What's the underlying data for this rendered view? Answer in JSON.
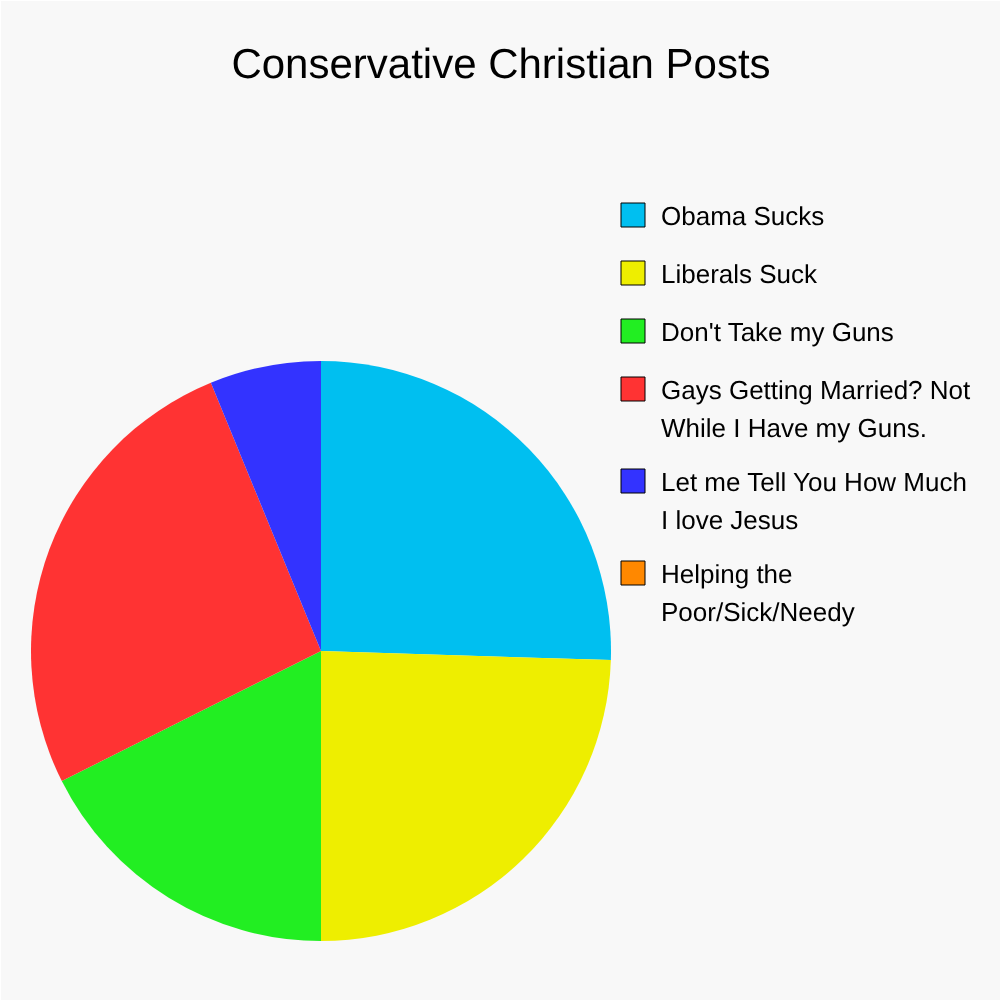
{
  "chart_data": {
    "type": "pie",
    "title": "Conservative Christian Posts",
    "categories": [
      "Obama Sucks",
      "Liberals Suck",
      "Don't Take my Guns",
      "Gays Getting Married? Not While I Have my Guns.",
      "Let me Tell You How Much I love Jesus",
      "Helping the Poor/Sick/Needy"
    ],
    "values": [
      25.5,
      24.5,
      17.6,
      26.2,
      6.2,
      0
    ],
    "colors": [
      "#00bff0",
      "#eeee00",
      "#22ee22",
      "#ff3333",
      "#3333ff",
      "#ff8800"
    ],
    "legend": "right"
  }
}
